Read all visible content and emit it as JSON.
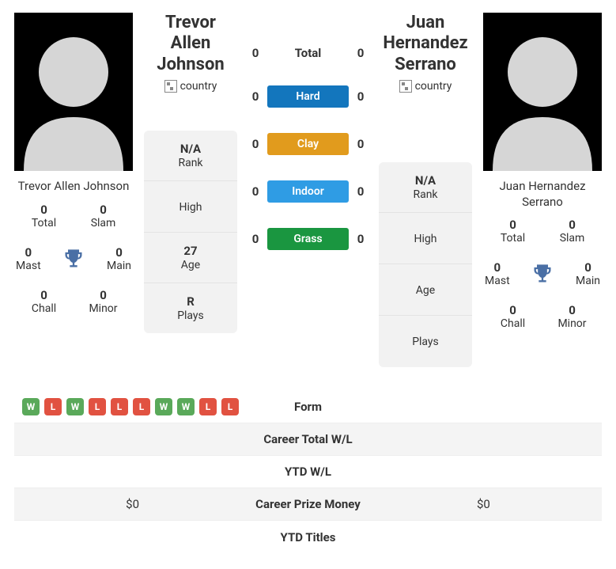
{
  "player1": {
    "name": "Trevor Allen Johnson",
    "flag_alt": "country",
    "titles": {
      "total": {
        "val": "0",
        "lbl": "Total"
      },
      "slam": {
        "val": "0",
        "lbl": "Slam"
      },
      "mast": {
        "val": "0",
        "lbl": "Mast"
      },
      "main": {
        "val": "0",
        "lbl": "Main"
      },
      "chall": {
        "val": "0",
        "lbl": "Chall"
      },
      "minor": {
        "val": "0",
        "lbl": "Minor"
      }
    },
    "info": {
      "rank": {
        "val": "N/A",
        "lbl": "Rank"
      },
      "high": {
        "val": "",
        "lbl": "High"
      },
      "age": {
        "val": "27",
        "lbl": "Age"
      },
      "plays": {
        "val": "R",
        "lbl": "Plays"
      }
    },
    "form": [
      "W",
      "L",
      "W",
      "L",
      "L",
      "L",
      "W",
      "W",
      "L",
      "L"
    ]
  },
  "player2": {
    "name": "Juan Hernandez Serrano",
    "flag_alt": "country",
    "titles": {
      "total": {
        "val": "0",
        "lbl": "Total"
      },
      "slam": {
        "val": "0",
        "lbl": "Slam"
      },
      "mast": {
        "val": "0",
        "lbl": "Mast"
      },
      "main": {
        "val": "0",
        "lbl": "Main"
      },
      "chall": {
        "val": "0",
        "lbl": "Chall"
      },
      "minor": {
        "val": "0",
        "lbl": "Minor"
      }
    },
    "info": {
      "rank": {
        "val": "N/A",
        "lbl": "Rank"
      },
      "high": {
        "val": "",
        "lbl": "High"
      },
      "age": {
        "val": "",
        "lbl": "Age"
      },
      "plays": {
        "val": "",
        "lbl": "Plays"
      }
    },
    "form": []
  },
  "h2h": {
    "total": {
      "label": "Total",
      "p1": "0",
      "p2": "0"
    },
    "surfaces": [
      {
        "label": "Hard",
        "p1": "0",
        "p2": "0",
        "color": "#1376bd"
      },
      {
        "label": "Clay",
        "p1": "0",
        "p2": "0",
        "color": "#e19b1d"
      },
      {
        "label": "Indoor",
        "p1": "0",
        "p2": "0",
        "color": "#2f9ce4"
      },
      {
        "label": "Grass",
        "p1": "0",
        "p2": "0",
        "color": "#1a9640"
      }
    ]
  },
  "stats": {
    "form_label": "Form",
    "career_wl": {
      "label": "Career Total W/L",
      "p1": "",
      "p2": ""
    },
    "ytd_wl": {
      "label": "YTD W/L",
      "p1": "",
      "p2": ""
    },
    "prize": {
      "label": "Career Prize Money",
      "p1": "$0",
      "p2": "$0"
    },
    "ytd_titles": {
      "label": "YTD Titles",
      "p1": "",
      "p2": ""
    }
  },
  "colors": {
    "win_badge": "#5aa95a",
    "loss_badge": "#e15241",
    "trophy": "#4a6fa5"
  }
}
